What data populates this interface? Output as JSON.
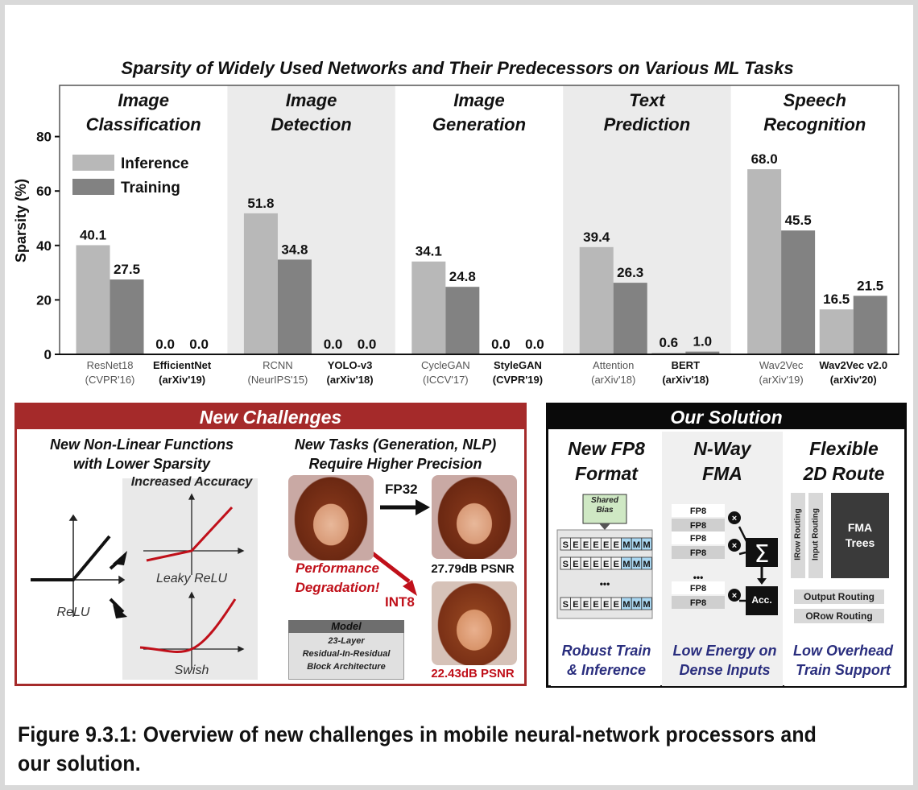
{
  "chart_data": {
    "type": "bar",
    "title": "Sparsity of Widely Used Networks and Their Predecessors on Various ML Tasks",
    "ylabel": "Sparsity (%)",
    "ylim": [
      0,
      85
    ],
    "yticks": [
      0,
      20,
      40,
      60,
      80
    ],
    "legend_position": "top-left",
    "series": [
      {
        "name": "Inference",
        "color": "#b8b8b8"
      },
      {
        "name": "Training",
        "color": "#828282"
      }
    ],
    "tasks": [
      {
        "label": [
          "Image",
          "Classification"
        ],
        "shaded": false,
        "networks": [
          {
            "name": "ResNet18",
            "venue": "(CVPR'16)",
            "bold": false,
            "values": [
              40.1,
              27.5
            ],
            "labels": [
              "40.1",
              "27.5"
            ]
          },
          {
            "name": "EfficientNet",
            "venue": "(arXiv'19)",
            "bold": true,
            "values": [
              0.0,
              0.0
            ],
            "labels": [
              "0.0",
              "0.0"
            ]
          }
        ]
      },
      {
        "label": [
          "Image",
          "Detection"
        ],
        "shaded": true,
        "networks": [
          {
            "name": "RCNN",
            "venue": "(NeurIPS'15)",
            "bold": false,
            "values": [
              51.8,
              34.8
            ],
            "labels": [
              "51.8",
              "34.8"
            ]
          },
          {
            "name": "YOLO-v3",
            "venue": "(arXiv'18)",
            "bold": true,
            "values": [
              0.0,
              0.0
            ],
            "labels": [
              "0.0",
              "0.0"
            ]
          }
        ]
      },
      {
        "label": [
          "Image",
          "Generation"
        ],
        "shaded": false,
        "networks": [
          {
            "name": "CycleGAN",
            "venue": "(ICCV'17)",
            "bold": false,
            "values": [
              34.1,
              24.8
            ],
            "labels": [
              "34.1",
              "24.8"
            ]
          },
          {
            "name": "StyleGAN",
            "venue": "(CVPR'19)",
            "bold": true,
            "values": [
              0.0,
              0.0
            ],
            "labels": [
              "0.0",
              "0.0"
            ]
          }
        ]
      },
      {
        "label": [
          "Text",
          "Prediction"
        ],
        "shaded": true,
        "networks": [
          {
            "name": "Attention",
            "venue": "(arXiv'18)",
            "bold": false,
            "values": [
              39.4,
              26.3
            ],
            "labels": [
              "39.4",
              "26.3"
            ]
          },
          {
            "name": "BERT",
            "venue": "(arXiv'18)",
            "bold": true,
            "values": [
              0.6,
              1.0
            ],
            "labels": [
              "0.6",
              "1.0"
            ]
          }
        ]
      },
      {
        "label": [
          "Speech",
          "Recognition"
        ],
        "shaded": false,
        "networks": [
          {
            "name": "Wav2Vec",
            "venue": "(arXiv'19)",
            "bold": false,
            "values": [
              68.0,
              45.5
            ],
            "labels": [
              "68.0",
              "45.5"
            ]
          },
          {
            "name": "Wav2Vec v2.0",
            "venue": "(arXiv'20)",
            "bold": true,
            "values": [
              16.5,
              21.5
            ],
            "labels": [
              "16.5",
              "21.5"
            ]
          }
        ]
      }
    ]
  },
  "challenges": {
    "header": "New Challenges",
    "left_title": [
      "New Non-Linear Functions",
      "with Lower Sparsity"
    ],
    "increased_accuracy": "Increased Accuracy",
    "relu": "ReLU",
    "leaky_relu": "Leaky ReLU",
    "swish": "Swish",
    "right_title": [
      "New Tasks (Generation, NLP)",
      "Require Higher Precision"
    ],
    "fp32": "FP32",
    "int8": "INT8",
    "psnr_fp32": "27.79dB PSNR",
    "psnr_int8": "22.43dB PSNR",
    "degradation": [
      "Performance",
      "Degradation!"
    ],
    "model_header": "Model",
    "model_text": [
      "23-Layer",
      "Residual-In-Residual",
      "Block Architecture"
    ]
  },
  "solution": {
    "header": "Our Solution",
    "col1_title": [
      "New FP8",
      "Format"
    ],
    "col2_title": [
      "N-Way",
      "FMA"
    ],
    "col3_title": [
      "Flexible",
      "2D Route"
    ],
    "shared_bias": [
      "Shared",
      "Bias"
    ],
    "ellipsis": "•••",
    "fp8": "FP8",
    "acc": "Acc.",
    "fma_trees": [
      "FMA",
      "Trees"
    ],
    "irow_routing": "IRow Routing",
    "input_routing": "Input Routing",
    "output_routing": "Output Routing",
    "orow_routing": "ORow Routing",
    "col1_footer": [
      "Robust Train",
      "& Inference"
    ],
    "col2_footer": [
      "Low Energy on",
      "Dense Inputs"
    ],
    "col3_footer": [
      "Low Overhead",
      "Train Support"
    ]
  },
  "caption": [
    "Figure 9.3.1: Overview of new challenges in mobile neural-network processors and",
    "our solution."
  ],
  "colors": {
    "challenge_red": "#a52a2a",
    "solution_black": "#0a0a0a",
    "footer_blue": "#2a2e7e",
    "curve_red": "#c0101a"
  }
}
